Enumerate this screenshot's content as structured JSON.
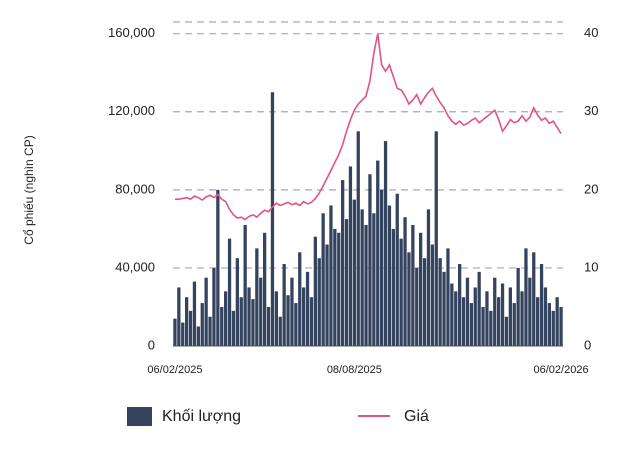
{
  "chart_data": {
    "type": "bar-line",
    "y_axis_label": "Cổ phiếu (nghìn CP)",
    "categories": [
      "06/02/2025",
      null,
      null,
      null,
      null,
      null,
      null,
      null,
      null,
      null,
      null,
      null,
      null,
      null,
      null,
      null,
      null,
      null,
      null,
      null,
      null,
      null,
      null,
      null,
      null,
      null,
      null,
      null,
      null,
      null,
      null,
      null,
      null,
      null,
      null,
      null,
      null,
      null,
      null,
      null,
      null,
      null,
      null,
      null,
      null,
      null,
      "08/08/2025",
      null,
      null,
      null,
      null,
      null,
      null,
      null,
      null,
      null,
      null,
      null,
      null,
      null,
      null,
      null,
      null,
      null,
      null,
      null,
      null,
      null,
      null,
      null,
      null,
      null,
      null,
      null,
      null,
      null,
      null,
      null,
      null,
      null,
      null,
      null,
      null,
      null,
      null,
      null,
      null,
      null,
      null,
      null,
      null,
      null,
      null,
      null,
      null,
      null,
      null,
      null,
      null,
      "06/02/2026"
    ],
    "series": [
      {
        "name": "Khối lượng",
        "color": "#34435e",
        "axis": "y",
        "values": [
          14000,
          30000,
          12000,
          25000,
          18000,
          33000,
          10000,
          22000,
          35000,
          15000,
          40000,
          80000,
          20000,
          28000,
          55000,
          18000,
          45000,
          25000,
          62000,
          30000,
          24000,
          50000,
          35000,
          58000,
          20000,
          130000,
          28000,
          15000,
          42000,
          26000,
          35000,
          22000,
          48000,
          30000,
          38000,
          25000,
          56000,
          45000,
          68000,
          52000,
          72000,
          60000,
          58000,
          85000,
          65000,
          92000,
          75000,
          110000,
          70000,
          62000,
          88000,
          68000,
          95000,
          80000,
          105000,
          72000,
          60000,
          78000,
          55000,
          66000,
          48000,
          62000,
          40000,
          58000,
          45000,
          70000,
          52000,
          110000,
          45000,
          38000,
          50000,
          32000,
          28000,
          42000,
          25000,
          35000,
          22000,
          30000,
          38000,
          20000,
          28000,
          18000,
          35000,
          25000,
          32000,
          15000,
          30000,
          22000,
          40000,
          28000,
          50000,
          35000,
          48000,
          25000,
          42000,
          30000,
          22000,
          18000,
          25000,
          20000
        ]
      },
      {
        "name": "Giá",
        "color": "#e0557f",
        "axis": "y2",
        "values": [
          18.8,
          18.8,
          18.9,
          19.0,
          18.8,
          19.2,
          19.0,
          18.7,
          19.1,
          19.3,
          19.0,
          19.4,
          18.8,
          18.5,
          17.5,
          16.8,
          16.4,
          16.5,
          16.2,
          16.6,
          16.8,
          16.5,
          17.0,
          17.4,
          17.2,
          17.8,
          18.3,
          18.0,
          18.2,
          18.4,
          18.1,
          18.3,
          18.0,
          18.5,
          18.2,
          18.4,
          18.9,
          19.6,
          20.5,
          21.5,
          22.5,
          23.5,
          24.5,
          25.8,
          27.5,
          29.0,
          30.2,
          31.0,
          31.5,
          32.0,
          34.0,
          37.5,
          40.0,
          36.0,
          35.2,
          36.0,
          34.5,
          33.0,
          32.8,
          32.0,
          31.0,
          31.5,
          32.2,
          31.0,
          31.8,
          32.5,
          33.0,
          32.0,
          31.2,
          30.5,
          29.5,
          28.8,
          28.4,
          28.8,
          28.3,
          28.5,
          28.9,
          29.2,
          28.6,
          29.0,
          29.4,
          29.8,
          30.2,
          29.0,
          27.5,
          28.2,
          29.0,
          28.6,
          28.8,
          29.5,
          28.8,
          29.3,
          30.5,
          29.6,
          28.9,
          29.2,
          28.5,
          28.8,
          28.0,
          27.2
        ]
      }
    ],
    "ylim": [
      0,
      166000
    ],
    "yticks": [
      {
        "value": 0,
        "label": "0"
      },
      {
        "value": 40000,
        "label": "40,000"
      },
      {
        "value": 80000,
        "label": "80,000"
      },
      {
        "value": 120000,
        "label": "120,000"
      },
      {
        "value": 160000,
        "label": "160,000"
      }
    ],
    "y2lim": [
      0,
      41.5
    ],
    "y2ticks": [
      0,
      10,
      20,
      30,
      40
    ],
    "grid": true,
    "legend": "bottom"
  }
}
